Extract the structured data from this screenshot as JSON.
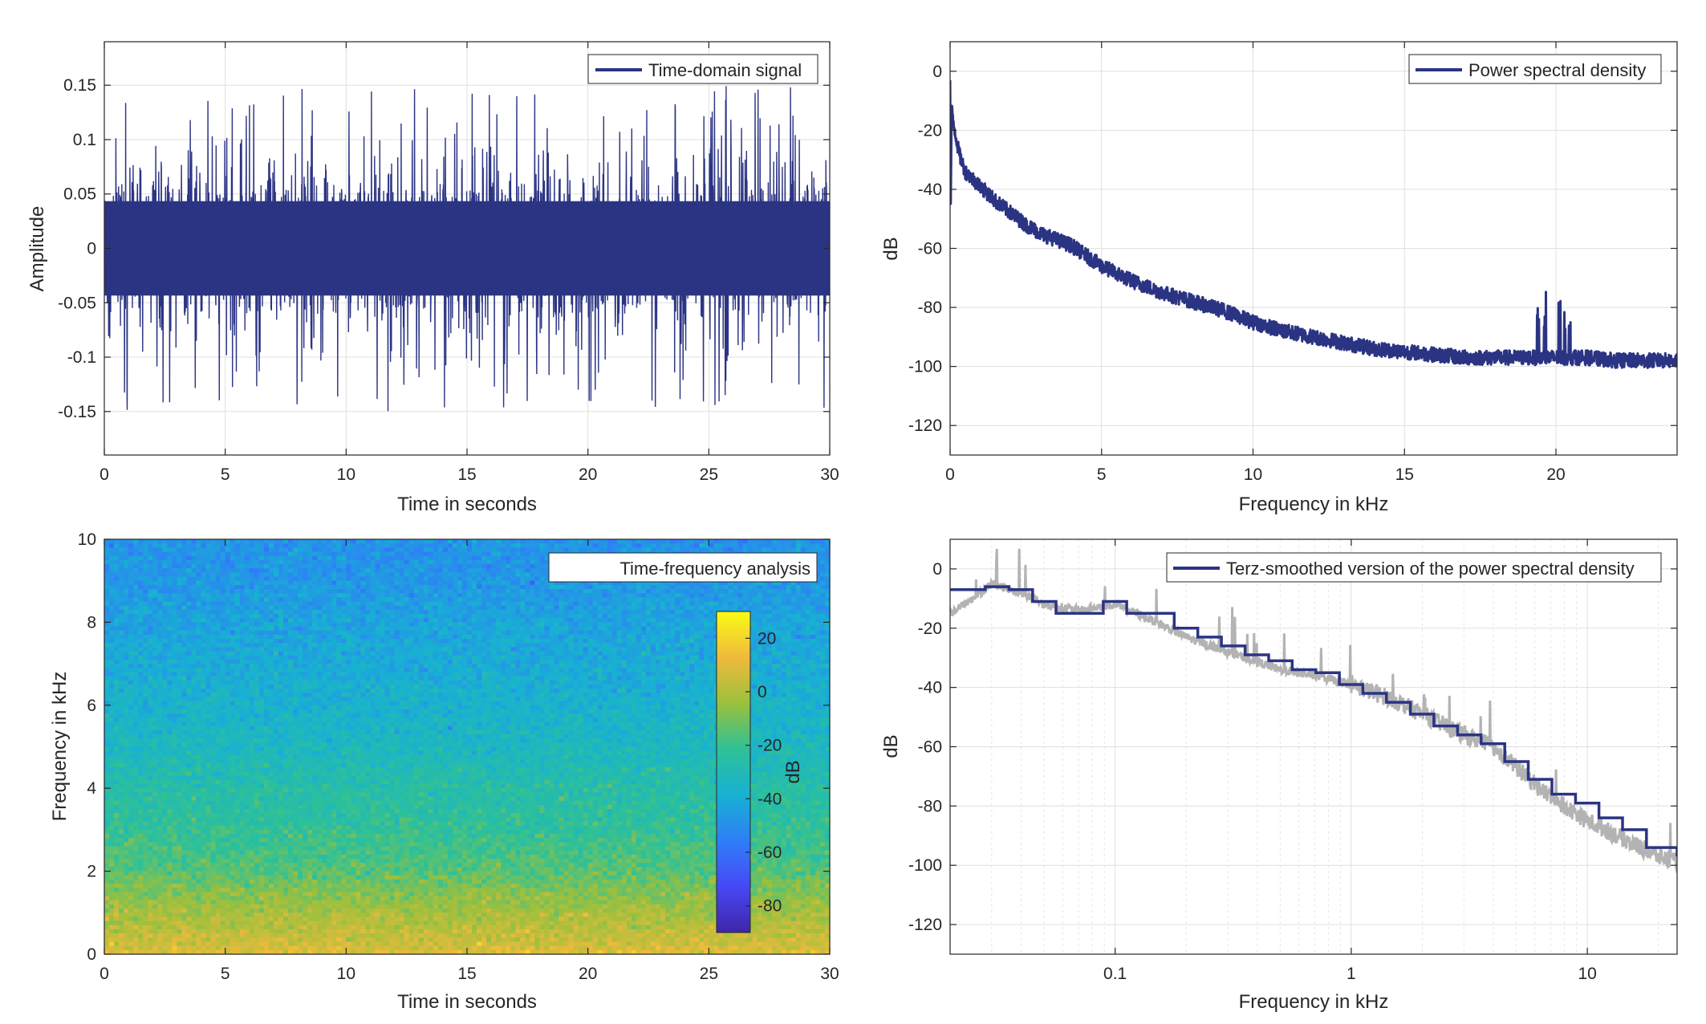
{
  "colors": {
    "signal": "#2b3483",
    "raw_psd": "#b3b3b3",
    "axis": "#262626",
    "grid": "#dfdfdf"
  },
  "chart_data": [
    {
      "type": "line",
      "id": "time_domain",
      "legend": "Time-domain signal",
      "legend_placement": "top-right",
      "xlabel": "Time in seconds",
      "ylabel": "Amplitude",
      "xlim": [
        0,
        30
      ],
      "ylim": [
        -0.19,
        0.19
      ],
      "xticks": [
        0,
        5,
        10,
        15,
        20,
        25,
        30
      ],
      "xtick_labels": [
        "0",
        "5",
        "10",
        "15",
        "20",
        "25",
        "30"
      ],
      "yticks": [
        -0.15,
        -0.1,
        -0.05,
        0,
        0.05,
        0.1,
        0.15
      ],
      "ytick_labels": [
        "-0.15",
        "-0.1",
        "-0.05",
        "0",
        "0.05",
        "0.1",
        "0.15"
      ],
      "grid": true,
      "envelope_typical": [
        -0.07,
        0.07
      ],
      "envelope_peak": [
        -0.152,
        0.15
      ]
    },
    {
      "type": "line",
      "id": "psd",
      "legend": "Power spectral density",
      "legend_placement": "top-right",
      "xlabel": "Frequency in kHz",
      "ylabel": "dB",
      "xlim": [
        0,
        24
      ],
      "ylim": [
        -130,
        10
      ],
      "xticks": [
        0,
        5,
        10,
        15,
        20
      ],
      "xtick_labels": [
        "0",
        "5",
        "10",
        "15",
        "20"
      ],
      "yticks": [
        -120,
        -100,
        -80,
        -60,
        -40,
        -20,
        0
      ],
      "ytick_labels": [
        "-120",
        "-100",
        "-80",
        "-60",
        "-40",
        "-20",
        "0"
      ],
      "grid": true,
      "x": [
        0.02,
        0.1,
        0.3,
        0.5,
        1,
        1.5,
        2,
        2.5,
        3,
        4,
        5,
        6,
        7,
        8,
        9,
        10,
        11,
        12,
        13,
        14,
        15,
        16,
        17,
        18,
        19,
        20,
        21,
        22,
        23,
        24
      ],
      "y": [
        -10,
        -17,
        -28,
        -34,
        -39,
        -44,
        -48,
        -52,
        -55,
        -59,
        -66,
        -71,
        -75,
        -78,
        -81,
        -85,
        -88,
        -90,
        -92,
        -94,
        -95,
        -96,
        -97,
        -97,
        -97,
        -97,
        -97,
        -98,
        -98,
        -98
      ],
      "band_width_db": 5
    },
    {
      "type": "heatmap",
      "id": "spectrogram",
      "legend": "Time-frequency analysis",
      "legend_placement": "top-right",
      "xlabel": "Time in seconds",
      "ylabel": "Frequency in kHz",
      "xlim": [
        0,
        30
      ],
      "ylim": [
        0,
        10
      ],
      "xticks": [
        0,
        5,
        10,
        15,
        20,
        25,
        30
      ],
      "xtick_labels": [
        "0",
        "5",
        "10",
        "15",
        "20",
        "25",
        "30"
      ],
      "yticks": [
        0,
        2,
        4,
        6,
        8,
        10
      ],
      "ytick_labels": [
        "0",
        "2",
        "4",
        "6",
        "8",
        "10"
      ],
      "colorbar": {
        "label": "dB",
        "limits": [
          -90,
          30
        ],
        "ticks": [
          -80,
          -60,
          -40,
          -20,
          0,
          20
        ],
        "tick_labels": [
          "-80",
          "-60",
          "-40",
          "-20",
          "0",
          "20"
        ],
        "colormap": [
          "#3e26a8",
          "#4748f5",
          "#2e7ef7",
          "#18b1d2",
          "#2ec197",
          "#9cc03d",
          "#f0ba3c",
          "#f9fb15"
        ]
      },
      "level_by_frequency_khz": [
        [
          0,
          10
        ],
        [
          0.3,
          5
        ],
        [
          0.8,
          0
        ],
        [
          1.5,
          -8
        ],
        [
          2,
          -15
        ],
        [
          3,
          -22
        ],
        [
          4,
          -26
        ],
        [
          5,
          -33
        ],
        [
          6,
          -37
        ],
        [
          7,
          -40
        ],
        [
          8,
          -43
        ],
        [
          9,
          -47
        ],
        [
          10,
          -49
        ]
      ]
    },
    {
      "type": "line",
      "id": "terz",
      "legend": "Terz-smoothed version of the power spectral density",
      "legend_placement": "top-right",
      "xlabel": "Frequency in kHz",
      "ylabel": "dB",
      "xscale": "log",
      "xlim": [
        0.02,
        24
      ],
      "ylim": [
        -130,
        10
      ],
      "xticks": [
        0.1,
        1,
        10
      ],
      "xtick_labels": [
        "0.1",
        "1",
        "10"
      ],
      "yticks": [
        -120,
        -100,
        -80,
        -60,
        -40,
        -20,
        0
      ],
      "ytick_labels": [
        "-120",
        "-100",
        "-80",
        "-60",
        "-40",
        "-20",
        "0"
      ],
      "grid": true,
      "series": [
        {
          "style": "smoothed step",
          "x": [
            0.02,
            0.0224,
            0.0282,
            0.0355,
            0.0447,
            0.0562,
            0.0708,
            0.0891,
            0.112,
            0.141,
            0.178,
            0.224,
            0.282,
            0.355,
            0.447,
            0.562,
            0.708,
            0.891,
            1.12,
            1.41,
            1.78,
            2.24,
            2.82,
            3.55,
            4.47,
            5.62,
            7.08,
            8.91,
            11.2,
            14.1,
            17.8,
            24
          ],
          "y": [
            -7,
            -7,
            -6,
            -7,
            -11,
            -15,
            -15,
            -11,
            -15,
            -15,
            -20,
            -23,
            -26,
            -29,
            -31,
            -34,
            -35,
            -39,
            -42,
            -45,
            -49,
            -53,
            -56,
            -59,
            -65,
            -71,
            -76,
            -79,
            -84,
            -88,
            -94,
            -97
          ]
        },
        {
          "style": "raw psd (gray)",
          "x": [
            0.02,
            0.025,
            0.03,
            0.04,
            0.05,
            0.07,
            0.1,
            0.15,
            0.2,
            0.3,
            0.5,
            0.7,
            1,
            1.5,
            2,
            3,
            4,
            5,
            7,
            10,
            15,
            20,
            24
          ],
          "y": [
            -15,
            -10,
            -5,
            -8,
            -12,
            -14,
            -12,
            -18,
            -23,
            -28,
            -34,
            -36,
            -39,
            -44,
            -49,
            -56,
            -60,
            -67,
            -77,
            -85,
            -92,
            -97,
            -99
          ]
        }
      ]
    }
  ]
}
